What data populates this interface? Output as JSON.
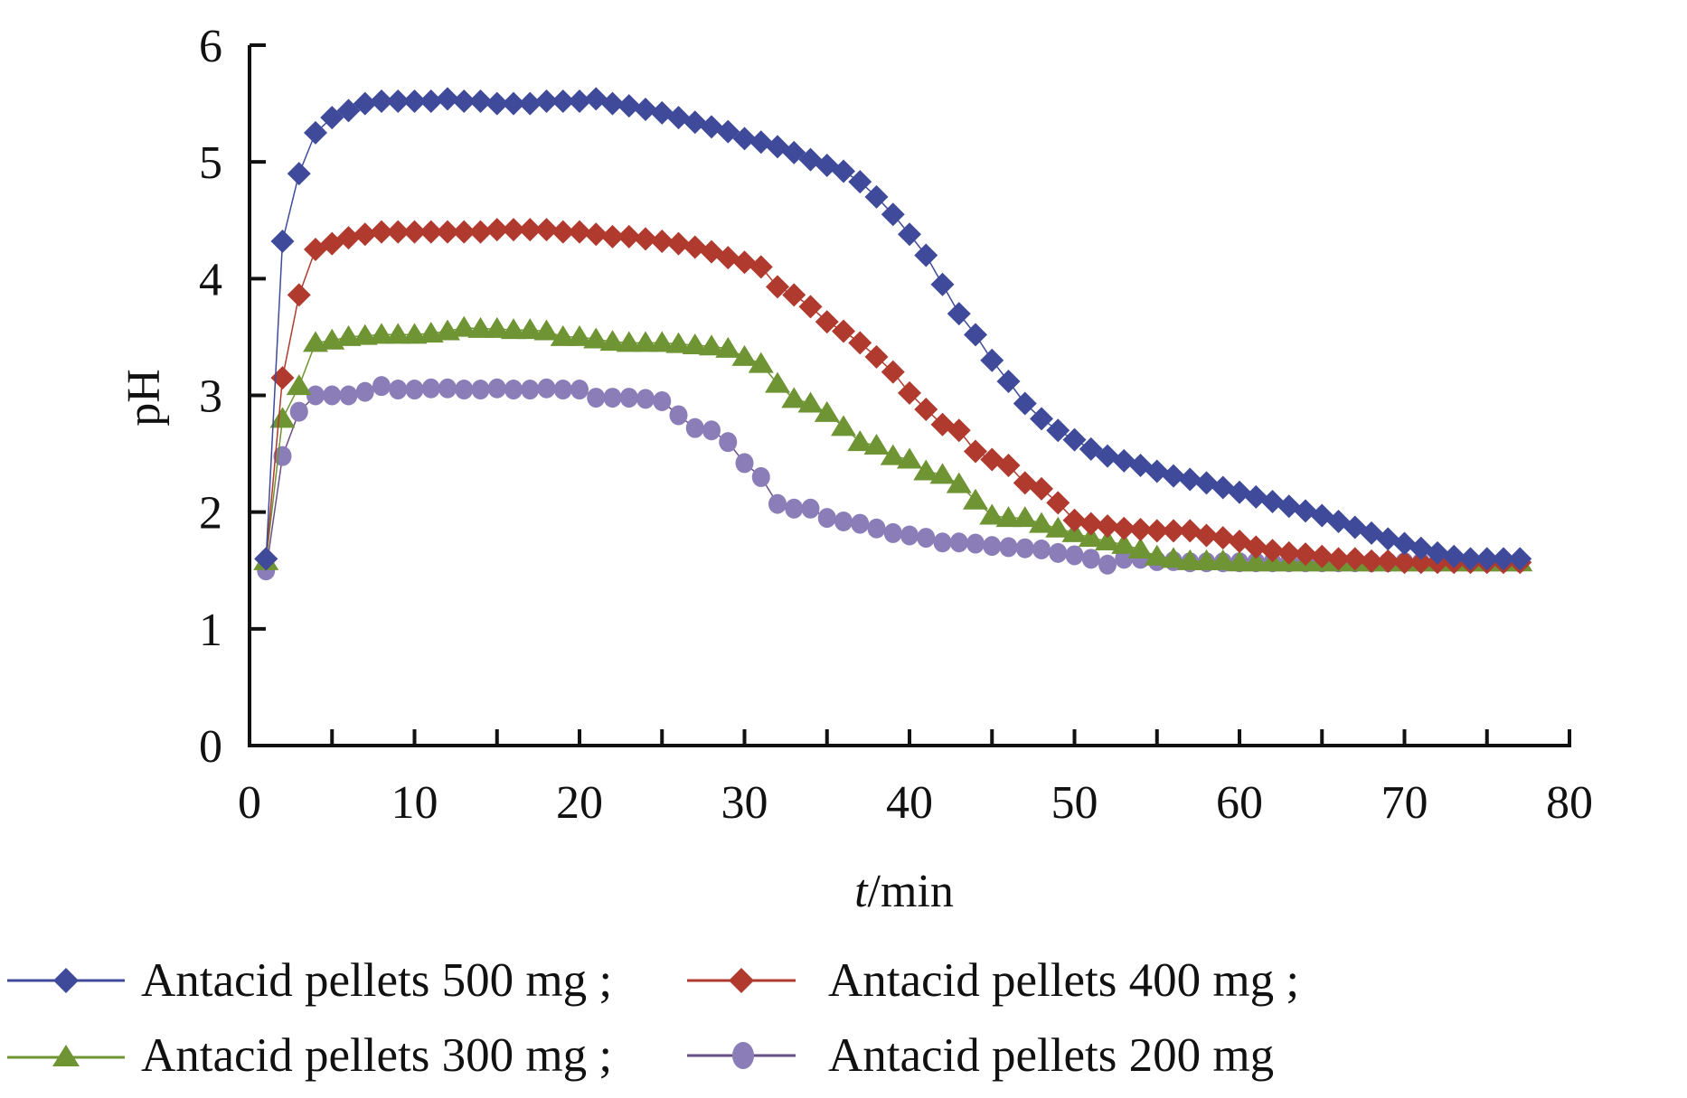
{
  "chart_data": {
    "type": "line",
    "title": "",
    "xlabel_italic": "t",
    "xlabel_rest": "/min",
    "ylabel": "pH",
    "xlim": [
      0,
      80
    ],
    "ylim": [
      0,
      6
    ],
    "xticks": [
      0,
      10,
      20,
      30,
      40,
      50,
      60,
      70,
      80
    ],
    "xticks_minor_step": 5,
    "yticks": [
      0,
      1,
      2,
      3,
      4,
      5,
      6
    ],
    "grid": false,
    "legend_position": "bottom",
    "x": [
      1,
      2,
      3,
      4,
      5,
      6,
      7,
      8,
      9,
      10,
      11,
      12,
      13,
      14,
      15,
      16,
      17,
      18,
      19,
      20,
      21,
      22,
      23,
      24,
      25,
      26,
      27,
      28,
      29,
      30,
      31,
      32,
      33,
      34,
      35,
      36,
      37,
      38,
      39,
      40,
      41,
      42,
      43,
      44,
      45,
      46,
      47,
      48,
      49,
      50,
      51,
      52,
      53,
      54,
      55,
      56,
      57,
      58,
      59,
      60,
      61,
      62,
      63,
      64,
      65,
      66,
      67,
      68,
      69,
      70,
      71,
      72,
      73,
      74,
      75,
      76,
      77
    ],
    "series": [
      {
        "name": "Antacid pellets 500 mg ;",
        "color": "#3F4B9A",
        "marker": "diamond",
        "values": [
          1.6,
          4.32,
          4.9,
          5.25,
          5.38,
          5.44,
          5.5,
          5.52,
          5.52,
          5.52,
          5.52,
          5.54,
          5.52,
          5.52,
          5.5,
          5.5,
          5.5,
          5.52,
          5.52,
          5.52,
          5.54,
          5.5,
          5.48,
          5.45,
          5.42,
          5.38,
          5.34,
          5.3,
          5.26,
          5.2,
          5.17,
          5.13,
          5.08,
          5.02,
          4.97,
          4.92,
          4.83,
          4.7,
          4.55,
          4.38,
          4.2,
          3.95,
          3.7,
          3.52,
          3.3,
          3.12,
          2.93,
          2.8,
          2.7,
          2.62,
          2.54,
          2.48,
          2.44,
          2.4,
          2.35,
          2.31,
          2.28,
          2.25,
          2.21,
          2.17,
          2.13,
          2.09,
          2.05,
          2.01,
          1.97,
          1.92,
          1.87,
          1.82,
          1.77,
          1.73,
          1.69,
          1.65,
          1.62,
          1.6,
          1.6,
          1.6,
          1.6
        ]
      },
      {
        "name": "Antacid pellets 400 mg ;",
        "color": "#B03A2E",
        "marker": "diamond",
        "values": [
          1.6,
          3.15,
          3.86,
          4.25,
          4.3,
          4.35,
          4.38,
          4.4,
          4.4,
          4.4,
          4.4,
          4.4,
          4.4,
          4.4,
          4.42,
          4.42,
          4.42,
          4.42,
          4.4,
          4.4,
          4.38,
          4.36,
          4.36,
          4.34,
          4.32,
          4.3,
          4.27,
          4.23,
          4.18,
          4.14,
          4.1,
          3.93,
          3.86,
          3.76,
          3.63,
          3.55,
          3.45,
          3.33,
          3.2,
          3.02,
          2.88,
          2.75,
          2.7,
          2.52,
          2.45,
          2.4,
          2.25,
          2.2,
          2.08,
          1.93,
          1.9,
          1.88,
          1.86,
          1.85,
          1.84,
          1.84,
          1.84,
          1.8,
          1.78,
          1.75,
          1.7,
          1.67,
          1.65,
          1.64,
          1.62,
          1.6,
          1.6,
          1.58,
          1.58,
          1.57,
          1.57,
          1.57,
          1.57,
          1.57,
          1.57,
          1.57,
          1.57
        ]
      },
      {
        "name": "Antacid pellets 300 mg ;",
        "color": "#6E9433",
        "marker": "triangle",
        "values": [
          1.58,
          2.8,
          3.08,
          3.45,
          3.47,
          3.5,
          3.51,
          3.52,
          3.52,
          3.52,
          3.53,
          3.55,
          3.58,
          3.57,
          3.57,
          3.56,
          3.56,
          3.55,
          3.5,
          3.5,
          3.48,
          3.46,
          3.45,
          3.45,
          3.45,
          3.44,
          3.43,
          3.42,
          3.4,
          3.33,
          3.27,
          3.1,
          2.97,
          2.93,
          2.85,
          2.73,
          2.6,
          2.57,
          2.48,
          2.45,
          2.35,
          2.32,
          2.24,
          2.1,
          1.97,
          1.95,
          1.95,
          1.9,
          1.86,
          1.82,
          1.78,
          1.75,
          1.72,
          1.68,
          1.62,
          1.6,
          1.58,
          1.58,
          1.58,
          1.57,
          1.57,
          1.57,
          1.57,
          1.57,
          1.57,
          1.57,
          1.57,
          1.57,
          1.57,
          1.57,
          1.57,
          1.57,
          1.57,
          1.57,
          1.57,
          1.57,
          1.57
        ]
      },
      {
        "name": "Antacid pellets 200 mg",
        "color": "#8B7DB8",
        "marker": "circle",
        "values": [
          1.5,
          2.48,
          2.86,
          3.0,
          3.0,
          3.0,
          3.03,
          3.08,
          3.05,
          3.05,
          3.06,
          3.06,
          3.05,
          3.05,
          3.06,
          3.05,
          3.05,
          3.06,
          3.05,
          3.05,
          2.98,
          2.98,
          2.98,
          2.97,
          2.95,
          2.83,
          2.72,
          2.7,
          2.6,
          2.42,
          2.3,
          2.07,
          2.03,
          2.03,
          1.95,
          1.92,
          1.9,
          1.86,
          1.82,
          1.8,
          1.78,
          1.74,
          1.74,
          1.73,
          1.71,
          1.7,
          1.69,
          1.68,
          1.65,
          1.63,
          1.6,
          1.55,
          1.6,
          1.6,
          1.58,
          1.58,
          1.57,
          1.57,
          1.57,
          1.57,
          1.57,
          1.57,
          1.57,
          1.57,
          1.57,
          1.57,
          1.57,
          1.57,
          1.57,
          1.57,
          1.57,
          1.57,
          1.57,
          1.57,
          1.57,
          1.57,
          1.57
        ]
      }
    ]
  }
}
